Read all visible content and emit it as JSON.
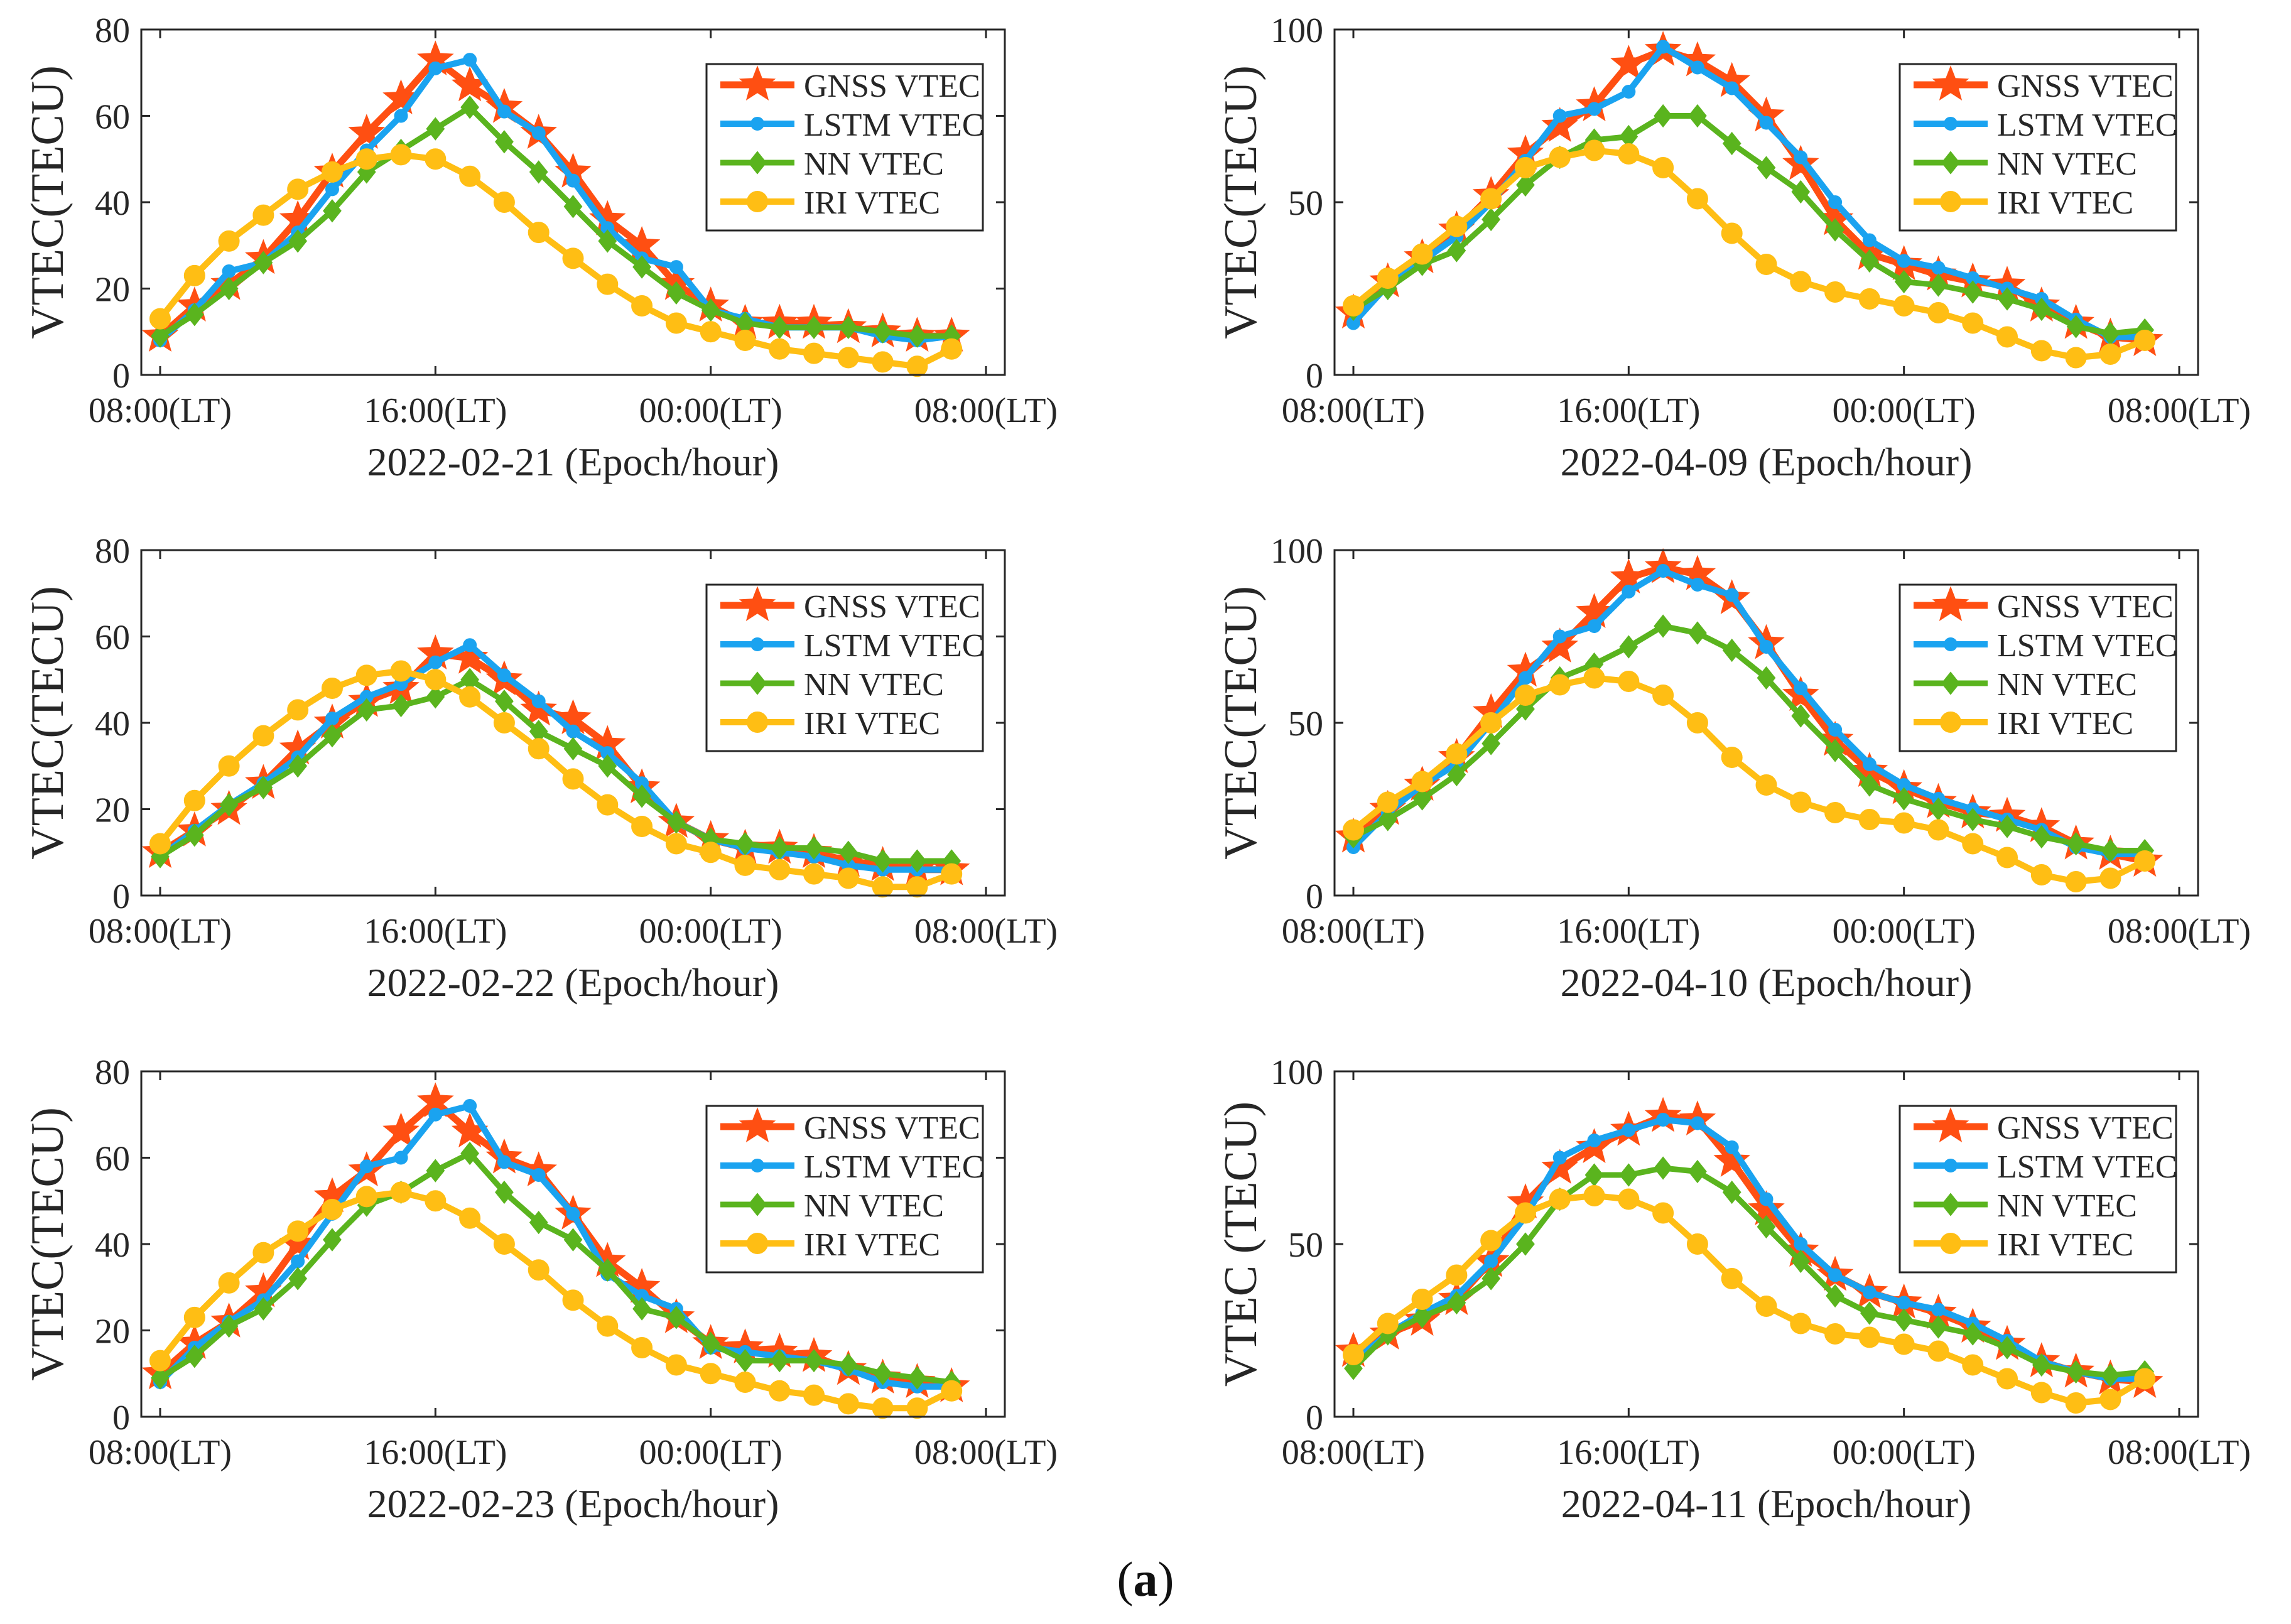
{
  "figure": {
    "panel_label_open": "(",
    "panel_label_letter": "a",
    "panel_label_close": ")"
  },
  "series_styles": [
    {
      "name": "GNSS VTEC",
      "color": "#FF4F12",
      "marker": "star"
    },
    {
      "name": "LSTM VTEC",
      "color": "#1AA3F0",
      "marker": "circle-small"
    },
    {
      "name": "NN VTEC",
      "color": "#5AB41E",
      "marker": "diamond"
    },
    {
      "name": "IRI VTEC",
      "color": "#FFBE14",
      "marker": "circle-large"
    }
  ],
  "chart_data": [
    {
      "type": "line",
      "title": "",
      "xlabel": "2022-02-21 (Epoch/hour)",
      "ylabel": "VTEC(TECU)",
      "xlim": [
        0,
        24
      ],
      "ylim": [
        0,
        80
      ],
      "yticks": [
        0,
        20,
        40,
        60,
        80
      ],
      "xticks": [
        0,
        8,
        16,
        24
      ],
      "xtick_labels": [
        "08:00(LT)",
        "16:00(LT)",
        "00:00(LT)",
        "08:00(LT)"
      ],
      "legend": "top-right",
      "x": [
        0,
        1,
        2,
        3,
        4,
        5,
        6,
        7,
        8,
        9,
        10,
        11,
        12,
        13,
        14,
        15,
        16,
        17,
        18,
        19,
        20,
        21,
        22,
        23
      ],
      "series": [
        {
          "name": "GNSS VTEC",
          "values": [
            9,
            16,
            21,
            27,
            36,
            47,
            56,
            64,
            73,
            67,
            62,
            56,
            47,
            36,
            30,
            21,
            16,
            12,
            12,
            12,
            11,
            10,
            9,
            9
          ]
        },
        {
          "name": "LSTM VTEC",
          "values": [
            8,
            15,
            24,
            26,
            33,
            43,
            52,
            60,
            71,
            73,
            61,
            56,
            45,
            34,
            27,
            25,
            15,
            13,
            11,
            11,
            11,
            9,
            8,
            9
          ]
        },
        {
          "name": "NN VTEC",
          "values": [
            9,
            14,
            20,
            26,
            31,
            38,
            47,
            52,
            57,
            62,
            54,
            47,
            39,
            31,
            25,
            19,
            15,
            12,
            11,
            11,
            11,
            10,
            9,
            9
          ]
        },
        {
          "name": "IRI VTEC",
          "values": [
            13,
            23,
            31,
            37,
            43,
            47,
            50,
            51,
            50,
            46,
            40,
            33,
            27,
            21,
            16,
            12,
            10,
            8,
            6,
            5,
            4,
            3,
            2,
            6
          ]
        }
      ]
    },
    {
      "type": "line",
      "title": "",
      "xlabel": "2022-04-09 (Epoch/hour)",
      "ylabel": "VTEC(TECU)",
      "xlim": [
        0,
        24
      ],
      "ylim": [
        0,
        100
      ],
      "yticks": [
        0,
        50,
        100
      ],
      "xticks": [
        0,
        8,
        16,
        24
      ],
      "xtick_labels": [
        "08:00(LT)",
        "16:00(LT)",
        "00:00(LT)",
        "08:00(LT)"
      ],
      "legend": "top-right",
      "x": [
        0,
        1,
        2,
        3,
        4,
        5,
        6,
        7,
        8,
        9,
        10,
        11,
        12,
        13,
        14,
        15,
        16,
        17,
        18,
        19,
        20,
        21,
        22,
        23
      ],
      "series": [
        {
          "name": "GNSS VTEC",
          "values": [
            18,
            27,
            34,
            42,
            52,
            64,
            72,
            78,
            90,
            94,
            91,
            85,
            75,
            61,
            45,
            35,
            32,
            29,
            27,
            26,
            20,
            15,
            11,
            10
          ]
        },
        {
          "name": "LSTM VTEC",
          "values": [
            15,
            26,
            33,
            40,
            50,
            62,
            75,
            77,
            82,
            95,
            89,
            83,
            73,
            63,
            50,
            39,
            33,
            31,
            28,
            25,
            22,
            16,
            11,
            11
          ]
        },
        {
          "name": "NN VTEC",
          "values": [
            19,
            25,
            32,
            36,
            45,
            55,
            63,
            68,
            69,
            75,
            75,
            67,
            60,
            53,
            42,
            33,
            27,
            26,
            24,
            22,
            19,
            14,
            12,
            13
          ]
        },
        {
          "name": "IRI VTEC",
          "values": [
            20,
            28,
            35,
            43,
            51,
            60,
            63,
            65,
            64,
            60,
            51,
            41,
            32,
            27,
            24,
            22,
            20,
            18,
            15,
            11,
            7,
            5,
            6,
            10
          ]
        }
      ]
    },
    {
      "type": "line",
      "title": "",
      "xlabel": "2022-02-22 (Epoch/hour)",
      "ylabel": "VTEC(TECU)",
      "xlim": [
        0,
        24
      ],
      "ylim": [
        0,
        80
      ],
      "yticks": [
        0,
        20,
        40,
        60,
        80
      ],
      "xticks": [
        0,
        8,
        16,
        24
      ],
      "xtick_labels": [
        "08:00(LT)",
        "16:00(LT)",
        "00:00(LT)",
        "08:00(LT)"
      ],
      "legend": "top-right",
      "x": [
        0,
        1,
        2,
        3,
        4,
        5,
        6,
        7,
        8,
        9,
        10,
        11,
        12,
        13,
        14,
        15,
        16,
        17,
        18,
        19,
        20,
        21,
        22,
        23
      ],
      "series": [
        {
          "name": "GNSS VTEC",
          "values": [
            10,
            15,
            20,
            26,
            34,
            40,
            45,
            48,
            56,
            55,
            50,
            43,
            41,
            35,
            25,
            17,
            13,
            11,
            11,
            10,
            8,
            7,
            6,
            6
          ]
        },
        {
          "name": "LSTM VTEC",
          "values": [
            9,
            15,
            21,
            26,
            32,
            41,
            46,
            49,
            54,
            58,
            51,
            45,
            38,
            33,
            26,
            17,
            13,
            11,
            10,
            9,
            7,
            6,
            6,
            6
          ]
        },
        {
          "name": "NN VTEC",
          "values": [
            9,
            14,
            21,
            25,
            30,
            37,
            43,
            44,
            46,
            50,
            45,
            38,
            34,
            30,
            23,
            17,
            13,
            12,
            11,
            11,
            10,
            8,
            8,
            8
          ]
        },
        {
          "name": "IRI VTEC",
          "values": [
            12,
            22,
            30,
            37,
            43,
            48,
            51,
            52,
            50,
            46,
            40,
            34,
            27,
            21,
            16,
            12,
            10,
            7,
            6,
            5,
            4,
            2,
            2,
            5
          ]
        }
      ]
    },
    {
      "type": "line",
      "title": "",
      "xlabel": "2022-04-10 (Epoch/hour)",
      "ylabel": "VTEC(TECU)",
      "xlim": [
        0,
        24
      ],
      "ylim": [
        0,
        100
      ],
      "yticks": [
        0,
        50,
        100
      ],
      "xticks": [
        0,
        8,
        16,
        24
      ],
      "xtick_labels": [
        "08:00(LT)",
        "16:00(LT)",
        "00:00(LT)",
        "08:00(LT)"
      ],
      "legend": "top-right",
      "x": [
        0,
        1,
        2,
        3,
        4,
        5,
        6,
        7,
        8,
        9,
        10,
        11,
        12,
        13,
        14,
        15,
        16,
        17,
        18,
        19,
        20,
        21,
        22,
        23
      ],
      "series": [
        {
          "name": "GNSS VTEC",
          "values": [
            17,
            25,
            32,
            40,
            53,
            65,
            72,
            82,
            92,
            95,
            93,
            86,
            73,
            58,
            45,
            36,
            31,
            27,
            24,
            23,
            20,
            15,
            12,
            10
          ]
        },
        {
          "name": "LSTM VTEC",
          "values": [
            14,
            24,
            32,
            38,
            50,
            63,
            75,
            78,
            88,
            94,
            90,
            87,
            72,
            60,
            48,
            38,
            32,
            28,
            25,
            22,
            19,
            14,
            12,
            12
          ]
        },
        {
          "name": "NN VTEC",
          "values": [
            17,
            22,
            28,
            35,
            44,
            54,
            63,
            67,
            72,
            78,
            76,
            71,
            63,
            52,
            42,
            32,
            28,
            25,
            22,
            20,
            17,
            15,
            13,
            13
          ]
        },
        {
          "name": "IRI VTEC",
          "values": [
            19,
            27,
            33,
            41,
            50,
            58,
            61,
            63,
            62,
            58,
            50,
            40,
            32,
            27,
            24,
            22,
            21,
            19,
            15,
            11,
            6,
            4,
            5,
            10
          ]
        }
      ]
    },
    {
      "type": "line",
      "title": "",
      "xlabel": "2022-02-23 (Epoch/hour)",
      "ylabel": "VTEC(TECU)",
      "xlim": [
        0,
        24
      ],
      "ylim": [
        0,
        80
      ],
      "yticks": [
        0,
        20,
        40,
        60,
        80
      ],
      "xticks": [
        0,
        8,
        16,
        24
      ],
      "xtick_labels": [
        "08:00(LT)",
        "16:00(LT)",
        "00:00(LT)",
        "08:00(LT)"
      ],
      "legend": "top-right",
      "x": [
        0,
        1,
        2,
        3,
        4,
        5,
        6,
        7,
        8,
        9,
        10,
        11,
        12,
        13,
        14,
        15,
        16,
        17,
        18,
        19,
        20,
        21,
        22,
        23
      ],
      "series": [
        {
          "name": "GNSS VTEC",
          "values": [
            10,
            17,
            22,
            29,
            40,
            51,
            57,
            66,
            73,
            66,
            60,
            57,
            47,
            36,
            30,
            23,
            17,
            16,
            15,
            14,
            11,
            9,
            8,
            7
          ]
        },
        {
          "name": "LSTM VTEC",
          "values": [
            8,
            16,
            22,
            27,
            36,
            47,
            58,
            60,
            70,
            72,
            59,
            56,
            47,
            33,
            28,
            25,
            16,
            15,
            14,
            13,
            11,
            8,
            7,
            7
          ]
        },
        {
          "name": "NN VTEC",
          "values": [
            9,
            14,
            21,
            25,
            32,
            41,
            49,
            52,
            57,
            61,
            52,
            45,
            41,
            34,
            25,
            23,
            17,
            13,
            13,
            13,
            12,
            10,
            9,
            8
          ]
        },
        {
          "name": "IRI VTEC",
          "values": [
            13,
            23,
            31,
            38,
            43,
            48,
            51,
            52,
            50,
            46,
            40,
            34,
            27,
            21,
            16,
            12,
            10,
            8,
            6,
            5,
            3,
            2,
            2,
            6
          ]
        }
      ]
    },
    {
      "type": "line",
      "title": "",
      "xlabel": "2022-04-11 (Epoch/hour)",
      "ylabel": "VTEC (TECU)",
      "xlim": [
        0,
        24
      ],
      "ylim": [
        0,
        100
      ],
      "yticks": [
        0,
        50,
        100
      ],
      "xticks": [
        0,
        8,
        16,
        24
      ],
      "xtick_labels": [
        "08:00(LT)",
        "16:00(LT)",
        "00:00(LT)",
        "08:00(LT)"
      ],
      "legend": "top-right",
      "x": [
        0,
        1,
        2,
        3,
        4,
        5,
        6,
        7,
        8,
        9,
        10,
        11,
        12,
        13,
        14,
        15,
        16,
        17,
        18,
        19,
        20,
        21,
        22,
        23
      ],
      "series": [
        {
          "name": "GNSS VTEC",
          "values": [
            19,
            24,
            28,
            34,
            45,
            62,
            72,
            78,
            83,
            87,
            86,
            74,
            60,
            48,
            41,
            36,
            33,
            30,
            26,
            21,
            16,
            13,
            11,
            10
          ]
        },
        {
          "name": "LSTM VTEC",
          "values": [
            16,
            24,
            30,
            35,
            45,
            58,
            75,
            80,
            83,
            86,
            85,
            78,
            63,
            50,
            41,
            36,
            33,
            31,
            27,
            22,
            16,
            13,
            11,
            11
          ]
        },
        {
          "name": "NN VTEC",
          "values": [
            14,
            24,
            29,
            33,
            40,
            50,
            63,
            70,
            70,
            72,
            71,
            65,
            55,
            45,
            35,
            30,
            28,
            26,
            24,
            20,
            15,
            13,
            12,
            13
          ]
        },
        {
          "name": "IRI VTEC",
          "values": [
            18,
            27,
            34,
            41,
            51,
            59,
            63,
            64,
            63,
            59,
            50,
            40,
            32,
            27,
            24,
            23,
            21,
            19,
            15,
            11,
            7,
            4,
            5,
            11
          ]
        }
      ]
    }
  ]
}
